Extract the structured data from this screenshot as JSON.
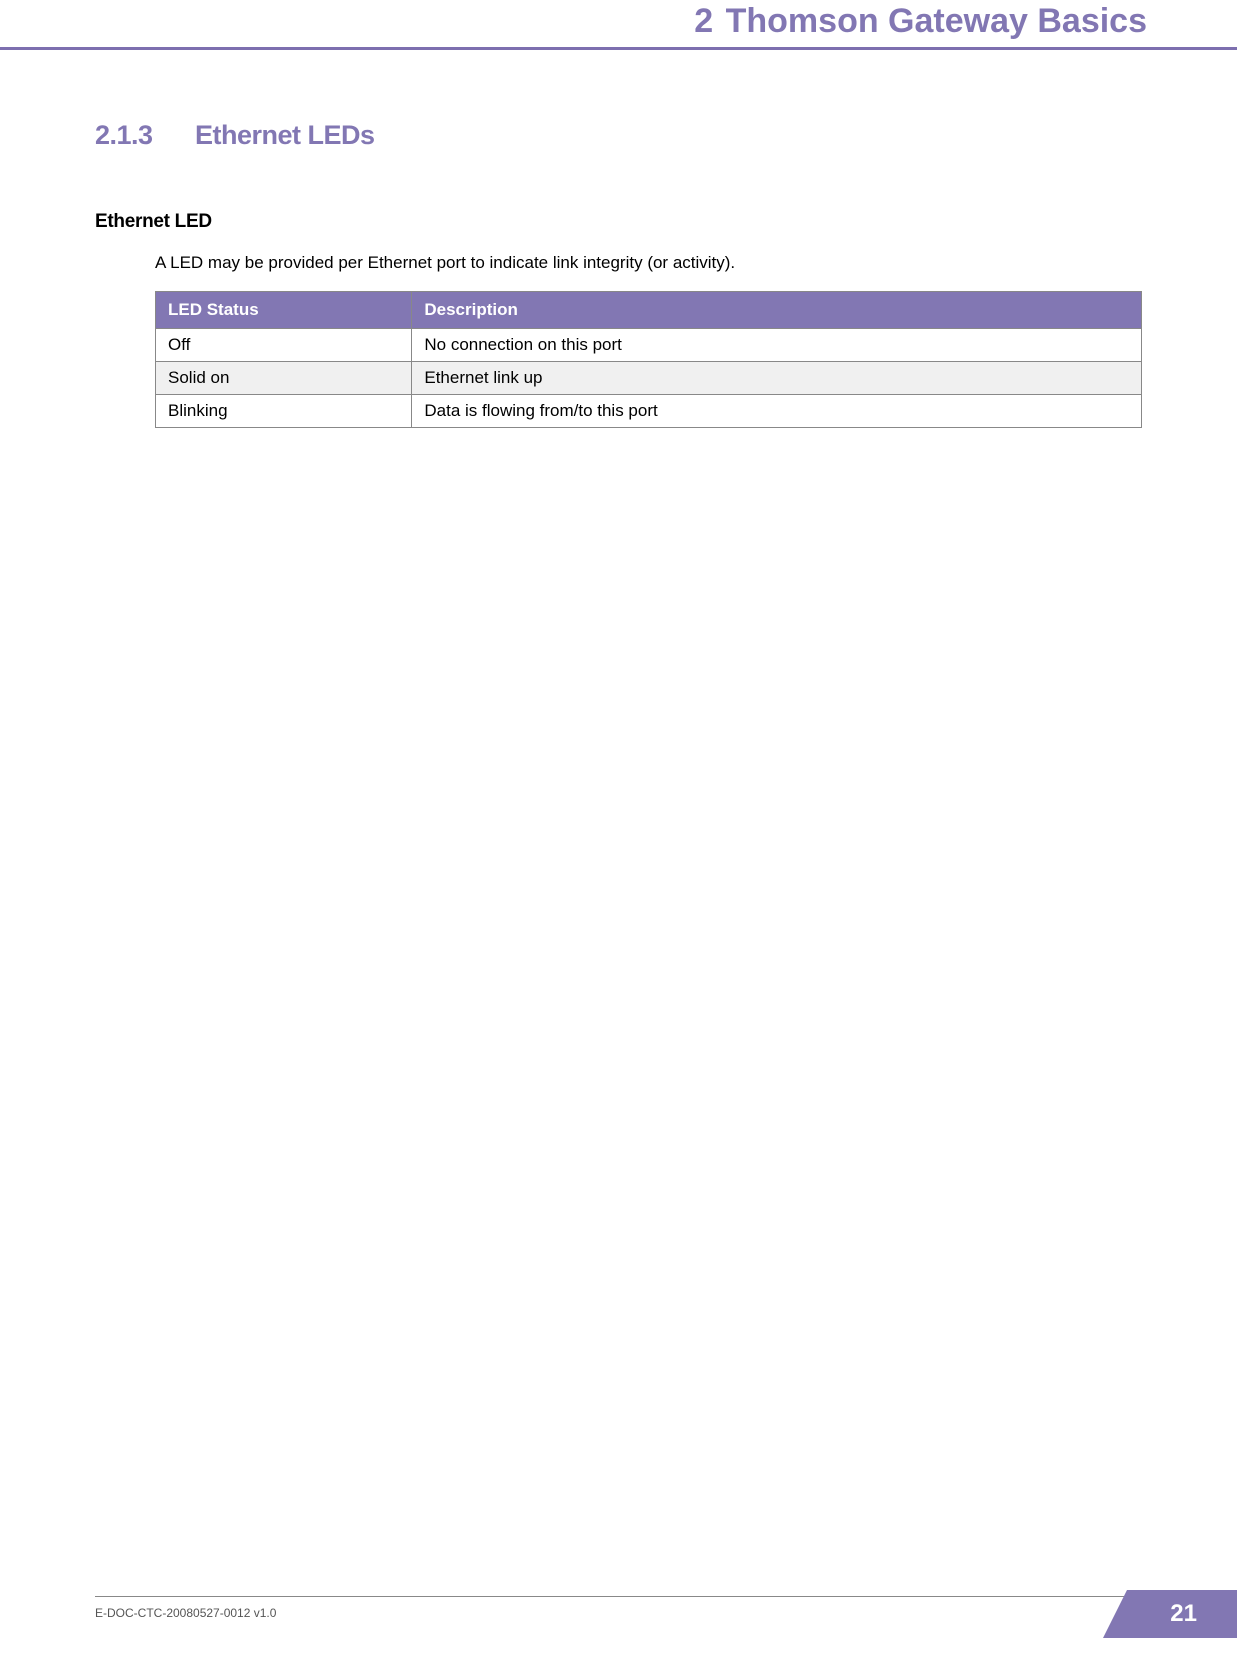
{
  "header": {
    "chapter_number": "2",
    "chapter_title": "Thomson Gateway Basics"
  },
  "section": {
    "number": "2.1.3",
    "title": "Ethernet LEDs"
  },
  "subsection": {
    "heading": "Ethernet LED",
    "body": "A LED may be provided per Ethernet port to indicate link integrity (or activity)."
  },
  "table": {
    "type": "table",
    "header_bg_color": "#8277b3",
    "header_text_color": "#ffffff",
    "border_color": "#888888",
    "alt_row_bg": "#f0f0f0",
    "columns": [
      "LED Status",
      "Description"
    ],
    "column_widths": [
      "26%",
      "74%"
    ],
    "rows": [
      {
        "status": "Off",
        "description": "No connection on this port",
        "alt": false
      },
      {
        "status": "Solid on",
        "description": "Ethernet link up",
        "alt": true
      },
      {
        "status": "Blinking",
        "description": "Data is flowing from/to this port",
        "alt": false
      }
    ]
  },
  "footer": {
    "doc_id": "E-DOC-CTC-20080527-0012 v1.0",
    "page_number": "21"
  },
  "colors": {
    "accent": "#8277b3",
    "header_rule": "#7d6faf",
    "text": "#000000",
    "footer_text": "#555555",
    "background": "#ffffff"
  },
  "typography": {
    "chapter_fontsize": 34,
    "section_heading_fontsize": 27,
    "subsection_heading_fontsize": 19,
    "body_fontsize": 17,
    "table_fontsize": 17,
    "footer_fontsize": 12,
    "pagenum_fontsize": 24
  }
}
